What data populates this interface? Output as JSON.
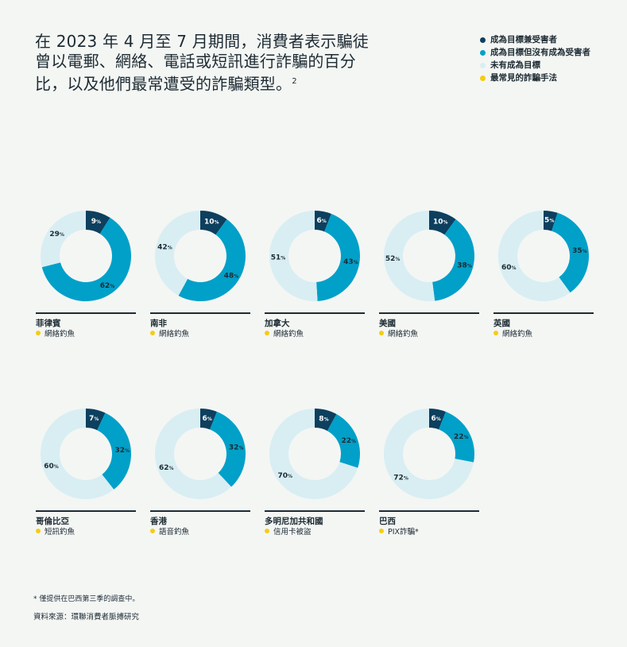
{
  "title": "在 2023 年 4 月至 7 月期間，消費者表示騙徒曾以電郵、網絡、電話或短訊進行詐騙的百分比，以及他們最常遭受的詐騙類型。",
  "title_sup": "2",
  "legend": [
    {
      "label": "成為目標兼受害者",
      "color": "#0d3f5e"
    },
    {
      "label": "成為目標但沒有成為受害者",
      "color": "#00a0c9"
    },
    {
      "label": "未有成為目標",
      "color": "#d8eef3"
    },
    {
      "label": "最常見的詐騙手法",
      "color": "#f5cc13"
    }
  ],
  "chart_data": {
    "type": "donut",
    "series_names": [
      "成為目標兼受害者",
      "成為目標但沒有成為受害者",
      "未有成為目標"
    ],
    "colors": [
      "#0d3f5e",
      "#00a0c9",
      "#d8eef3"
    ],
    "charts": [
      {
        "country": "菲律賓",
        "method": "網絡釣魚",
        "values": [
          9,
          62,
          29
        ]
      },
      {
        "country": "南非",
        "method": "網絡釣魚",
        "values": [
          10,
          48,
          42
        ]
      },
      {
        "country": "加拿大",
        "method": "網絡釣魚",
        "values": [
          6,
          43,
          51
        ]
      },
      {
        "country": "美國",
        "method": "網絡釣魚",
        "values": [
          10,
          38,
          52
        ]
      },
      {
        "country": "英國",
        "method": "網絡釣魚",
        "values": [
          5,
          35,
          60
        ]
      },
      {
        "country": "哥倫比亞",
        "method": "短訊釣魚",
        "values": [
          7,
          32,
          60
        ]
      },
      {
        "country": "香港",
        "method": "語音釣魚",
        "values": [
          6,
          32,
          62
        ]
      },
      {
        "country": "多明尼加共和國",
        "method": "信用卡被盜",
        "values": [
          8,
          22,
          70
        ]
      },
      {
        "country": "巴西",
        "method": "PIX詐騙*",
        "values": [
          6,
          22,
          72
        ]
      }
    ],
    "unit": "%"
  },
  "footnote": "* 僅提供在巴西第三季的調查中。",
  "source": "資料來源：環聯消費者脈搏研究"
}
